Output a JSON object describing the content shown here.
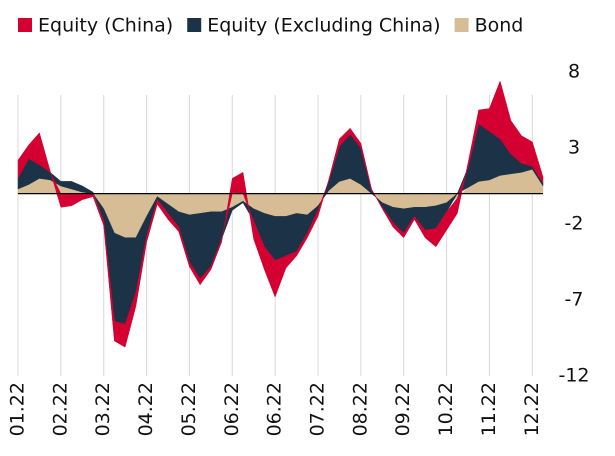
{
  "chart_data": {
    "type": "area",
    "stacked": true,
    "categories": [
      "01.22",
      null,
      null,
      null,
      "02.22",
      null,
      null,
      null,
      "03.22",
      null,
      null,
      null,
      "04.22",
      null,
      null,
      null,
      "05.22",
      null,
      null,
      null,
      "06.22",
      null,
      null,
      null,
      "06.22",
      null,
      null,
      null,
      "07.22",
      null,
      null,
      null,
      "08.22",
      null,
      null,
      null,
      "09.22",
      null,
      null,
      null,
      "10.22",
      null,
      null,
      null,
      "11.22",
      null,
      null,
      null,
      "12.22",
      null
    ],
    "series": [
      {
        "name": "Equity (China)",
        "color": "#d50032",
        "values": [
          1.2,
          0.9,
          2.1,
          0.1,
          -0.9,
          -0.8,
          -0.4,
          -0.2,
          -0.3,
          -1.3,
          -1.5,
          -0.9,
          -0.4,
          -0.3,
          -0.4,
          -0.3,
          -0.3,
          -0.4,
          -0.2,
          -0.2,
          1.0,
          1.4,
          -1.2,
          -1.5,
          -2.4,
          -0.8,
          -0.3,
          -0.3,
          -0.4,
          0.1,
          0.5,
          0.4,
          0.3,
          0.1,
          -0.1,
          -0.3,
          -0.3,
          -0.2,
          -0.5,
          -1.2,
          -1.2,
          -1.0,
          0.3,
          0.9,
          1.5,
          3.8,
          2.2,
          1.8,
          1.6,
          0.4
        ]
      },
      {
        "name": "Equity (Excluding China)",
        "color": "#1c3246",
        "values": [
          0.7,
          1.7,
          0.9,
          0.5,
          0.3,
          0.5,
          0.4,
          0.1,
          -0.8,
          -5.8,
          -5.7,
          -3.6,
          -1.3,
          -0.2,
          -0.6,
          -1.0,
          -3.1,
          -4.3,
          -3.6,
          -1.8,
          -0.2,
          -0.1,
          -0.8,
          -2.2,
          -2.9,
          -2.6,
          -2.5,
          -1.2,
          -0.3,
          0.6,
          2.3,
          2.9,
          2.4,
          0.2,
          -0.3,
          -1.0,
          -1.6,
          -0.6,
          -1.5,
          -1.5,
          -0.6,
          0.0,
          1.3,
          3.8,
          3.2,
          2.4,
          1.3,
          0.6,
          0.2,
          0.2
        ]
      },
      {
        "name": "Bond",
        "color": "#d6bd95",
        "values": [
          0.3,
          0.6,
          1.0,
          0.9,
          0.5,
          0.3,
          0.1,
          0.0,
          -1.0,
          -2.6,
          -2.9,
          -2.9,
          -1.5,
          -0.2,
          -0.7,
          -1.2,
          -1.4,
          -1.3,
          -1.2,
          -1.2,
          -0.9,
          -0.5,
          -1.0,
          -1.3,
          -1.5,
          -1.5,
          -1.3,
          -1.4,
          -0.8,
          0.2,
          0.8,
          1.0,
          0.6,
          0.0,
          -0.6,
          -0.9,
          -1.0,
          -0.9,
          -0.9,
          -0.8,
          -0.6,
          -0.3,
          0.4,
          0.8,
          0.9,
          1.2,
          1.3,
          1.4,
          1.6,
          0.5
        ]
      }
    ],
    "ylim": [
      -12,
      8
    ],
    "yticks": [
      8,
      3,
      -2,
      -7,
      -12
    ],
    "legend": "top"
  }
}
